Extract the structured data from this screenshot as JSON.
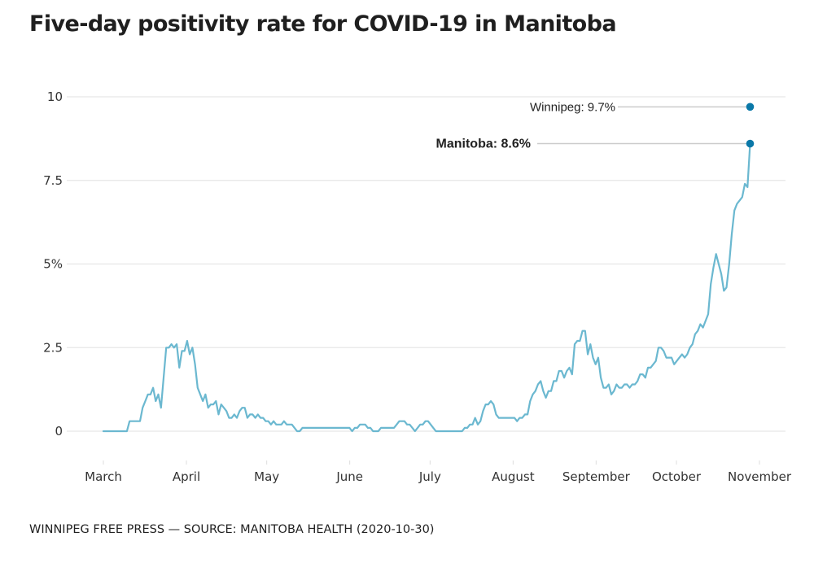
{
  "title": "Five-day positivity rate for COVID-19 in Manitoba",
  "footer": "WINNIPEG FREE PRESS — SOURCE: MANITOBA HEALTH (2020-10-30)",
  "colors": {
    "line": "#6bb8d0",
    "dot": "#0a78a8",
    "grid": "#e6e6e6",
    "leader": "#cccccc"
  },
  "chart_data": {
    "type": "line",
    "title": "Five-day positivity rate for COVID-19 in Manitoba",
    "xlabel": "",
    "ylabel": "",
    "ylim": [
      0,
      10
    ],
    "grid": true,
    "y_ticks": [
      {
        "value": 0,
        "label": "0"
      },
      {
        "value": 2.5,
        "label": "2.5"
      },
      {
        "value": 5,
        "label": "5%"
      },
      {
        "value": 7.5,
        "label": "7.5"
      },
      {
        "value": 10,
        "label": "10"
      }
    ],
    "x_ticks": [
      {
        "day": 0,
        "label": "March"
      },
      {
        "day": 31,
        "label": "April"
      },
      {
        "day": 61,
        "label": "May"
      },
      {
        "day": 92,
        "label": "June"
      },
      {
        "day": 122,
        "label": "July"
      },
      {
        "day": 153,
        "label": "August"
      },
      {
        "day": 184,
        "label": "September"
      },
      {
        "day": 214,
        "label": "October"
      },
      {
        "day": 245,
        "label": "November"
      }
    ],
    "x_domain_days": [
      0,
      245
    ],
    "x_start_date": "2020-03-01",
    "series": [
      {
        "name": "Manitoba",
        "values": [
          0,
          0,
          0,
          0,
          0,
          0,
          0,
          0,
          0,
          0,
          0.3,
          0.3,
          0.3,
          0.3,
          0.3,
          0.7,
          0.9,
          1.1,
          1.1,
          1.3,
          0.9,
          1.1,
          0.7,
          1.6,
          2.5,
          2.5,
          2.6,
          2.5,
          2.6,
          1.9,
          2.4,
          2.4,
          2.7,
          2.3,
          2.5,
          2.0,
          1.3,
          1.1,
          0.9,
          1.1,
          0.7,
          0.8,
          0.8,
          0.9,
          0.5,
          0.8,
          0.7,
          0.6,
          0.4,
          0.4,
          0.5,
          0.4,
          0.6,
          0.7,
          0.7,
          0.4,
          0.5,
          0.5,
          0.4,
          0.5,
          0.4,
          0.4,
          0.3,
          0.3,
          0.2,
          0.3,
          0.2,
          0.2,
          0.2,
          0.3,
          0.2,
          0.2,
          0.2,
          0.1,
          0,
          0,
          0.1,
          0.1,
          0.1,
          0.1,
          0.1,
          0.1,
          0.1,
          0.1,
          0.1,
          0.1,
          0.1,
          0.1,
          0.1,
          0.1,
          0.1,
          0.1,
          0.1,
          0.1,
          0.1,
          0,
          0.1,
          0.1,
          0.2,
          0.2,
          0.2,
          0.1,
          0.1,
          0,
          0,
          0,
          0.1,
          0.1,
          0.1,
          0.1,
          0.1,
          0.1,
          0.2,
          0.3,
          0.3,
          0.3,
          0.2,
          0.2,
          0.1,
          0,
          0.1,
          0.2,
          0.2,
          0.3,
          0.3,
          0.2,
          0.1,
          0,
          0,
          0,
          0,
          0,
          0,
          0,
          0,
          0,
          0,
          0,
          0.1,
          0.1,
          0.2,
          0.2,
          0.4,
          0.2,
          0.3,
          0.6,
          0.8,
          0.8,
          0.9,
          0.8,
          0.5,
          0.4,
          0.4,
          0.4,
          0.4,
          0.4,
          0.4,
          0.4,
          0.3,
          0.4,
          0.4,
          0.5,
          0.5,
          0.9,
          1.1,
          1.2,
          1.4,
          1.5,
          1.2,
          1.0,
          1.2,
          1.2,
          1.5,
          1.5,
          1.8,
          1.8,
          1.6,
          1.8,
          1.9,
          1.7,
          2.6,
          2.7,
          2.7,
          3.0,
          3.0,
          2.3,
          2.6,
          2.2,
          2.0,
          2.2,
          1.6,
          1.3,
          1.3,
          1.4,
          1.1,
          1.2,
          1.4,
          1.3,
          1.3,
          1.4,
          1.4,
          1.3,
          1.4,
          1.4,
          1.5,
          1.7,
          1.7,
          1.6,
          1.9,
          1.9,
          2.0,
          2.1,
          2.5,
          2.5,
          2.4,
          2.2,
          2.2,
          2.2,
          2.0,
          2.1,
          2.2,
          2.3,
          2.2,
          2.3,
          2.5,
          2.6,
          2.9,
          3.0,
          3.2,
          3.1,
          3.3,
          3.5,
          4.4,
          4.9,
          5.3,
          5.0,
          4.7,
          4.2,
          4.3,
          5.0,
          5.9,
          6.6,
          6.8,
          6.9,
          7.0,
          7.4,
          7.3,
          8.6
        ]
      }
    ],
    "annotations": [
      {
        "label": "Winnipeg: 9.7%",
        "series": "Winnipeg",
        "value": 9.7,
        "bold": false
      },
      {
        "label": "Manitoba: 8.6%",
        "series": "Manitoba",
        "value": 8.6,
        "bold": true
      }
    ]
  }
}
